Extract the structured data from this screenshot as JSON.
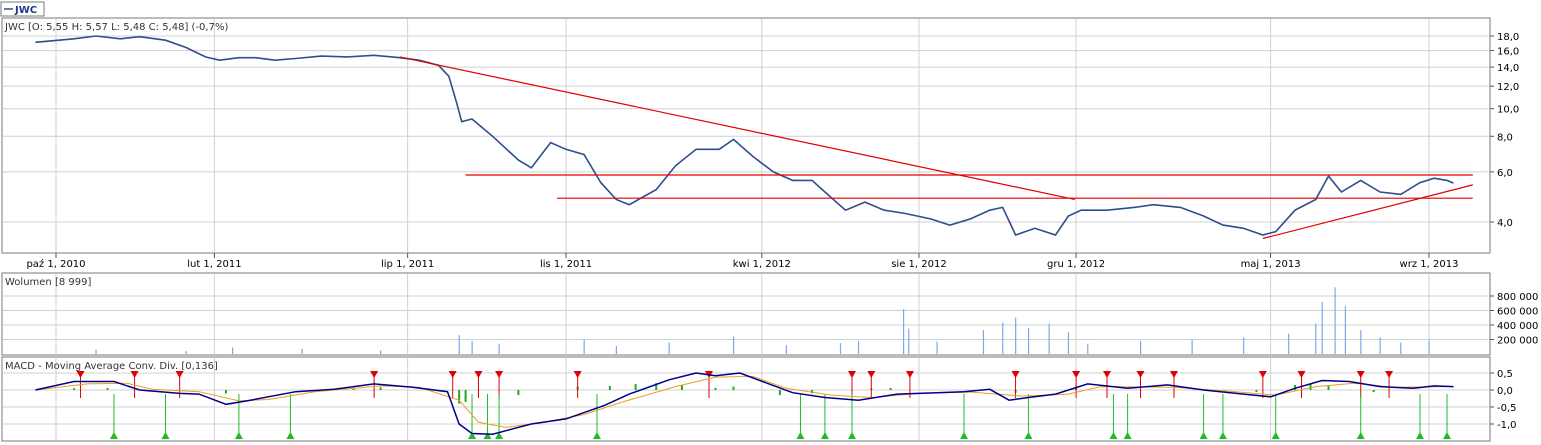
{
  "colors": {
    "price": "#2d4f8c",
    "trend": "#e00000",
    "volume": "#7aaae8",
    "macd": "#00008b",
    "signal": "#e8a020",
    "hist": "#22aa22",
    "down_marker": "#e00000",
    "up_marker": "#22bb22",
    "grid": "#d0d0d0",
    "border": "#7a7a7a"
  },
  "tab": {
    "symbol": "JWC"
  },
  "price_panel": {
    "header": "JWC [O: 5,55  H: 5,57  L: 5,48  C: 5,48] (-0,7%)",
    "y_ticks": [
      "18,0",
      "16,0",
      "14,0",
      "12,0",
      "10,0",
      "8,0",
      "6,0",
      "4,0"
    ],
    "x_ticks": [
      "paź 1, 2010",
      "lut 1, 2011",
      "lip 1, 2011",
      "lis 1, 2011",
      "kwi 1, 2012",
      "sie 1, 2012",
      "gru 1, 2012",
      "maj 1, 2013",
      "wrz 1, 2013"
    ]
  },
  "volume_panel": {
    "header": "Wolumen [8 999]",
    "y_ticks": [
      "800 000",
      "600 000",
      "400 000",
      "200 000"
    ]
  },
  "macd_panel": {
    "header": "MACD - Moving Average Conv. Div. [0,136]",
    "y_ticks": [
      "0,5",
      "0,0",
      "-0,5",
      "-1,0"
    ]
  },
  "chart_data": [
    {
      "type": "line",
      "series": [
        {
          "name": "JWC",
          "points": [
            [
              "2010-09-15",
              17.1
            ],
            [
              "2010-10-15",
              17.6
            ],
            [
              "2010-11-01",
              18.0
            ],
            [
              "2010-11-20",
              17.6
            ],
            [
              "2010-12-05",
              17.9
            ],
            [
              "2010-12-25",
              17.4
            ],
            [
              "2011-01-10",
              16.4
            ],
            [
              "2011-01-25",
              15.2
            ],
            [
              "2011-02-05",
              14.8
            ],
            [
              "2011-02-20",
              15.1
            ],
            [
              "2011-03-05",
              15.1
            ],
            [
              "2011-03-20",
              14.8
            ],
            [
              "2011-04-05",
              15.0
            ],
            [
              "2011-04-25",
              15.3
            ],
            [
              "2011-05-15",
              15.2
            ],
            [
              "2011-06-05",
              15.4
            ],
            [
              "2011-06-25",
              15.1
            ],
            [
              "2011-07-10",
              14.8
            ],
            [
              "2011-07-25",
              14.2
            ],
            [
              "2011-08-02",
              13.0
            ],
            [
              "2011-08-08",
              10.5
            ],
            [
              "2011-08-12",
              9.0
            ],
            [
              "2011-08-20",
              9.2
            ],
            [
              "2011-09-05",
              8.0
            ],
            [
              "2011-09-25",
              6.6
            ],
            [
              "2011-10-05",
              6.2
            ],
            [
              "2011-10-20",
              7.6
            ],
            [
              "2011-11-01",
              7.2
            ],
            [
              "2011-11-15",
              6.9
            ],
            [
              "2011-11-28",
              5.5
            ],
            [
              "2011-12-10",
              4.8
            ],
            [
              "2011-12-20",
              4.6
            ],
            [
              "2012-01-10",
              5.2
            ],
            [
              "2012-01-25",
              6.3
            ],
            [
              "2012-02-10",
              7.2
            ],
            [
              "2012-02-28",
              7.2
            ],
            [
              "2012-03-10",
              7.8
            ],
            [
              "2012-03-25",
              6.8
            ],
            [
              "2012-04-10",
              6.0
            ],
            [
              "2012-04-25",
              5.6
            ],
            [
              "2012-05-10",
              5.6
            ],
            [
              "2012-05-20",
              5.1
            ],
            [
              "2012-06-05",
              4.4
            ],
            [
              "2012-06-20",
              4.7
            ],
            [
              "2012-07-05",
              4.4
            ],
            [
              "2012-07-20",
              4.3
            ],
            [
              "2012-08-10",
              4.1
            ],
            [
              "2012-08-25",
              3.9
            ],
            [
              "2012-09-10",
              4.1
            ],
            [
              "2012-09-25",
              4.4
            ],
            [
              "2012-10-05",
              4.5
            ],
            [
              "2012-10-15",
              3.6
            ],
            [
              "2012-10-30",
              3.8
            ],
            [
              "2012-11-15",
              3.6
            ],
            [
              "2012-11-25",
              4.2
            ],
            [
              "2012-12-05",
              4.4
            ],
            [
              "2012-12-25",
              4.4
            ],
            [
              "2013-01-15",
              4.5
            ],
            [
              "2013-01-30",
              4.6
            ],
            [
              "2013-02-20",
              4.5
            ],
            [
              "2013-03-10",
              4.2
            ],
            [
              "2013-03-25",
              3.9
            ],
            [
              "2013-04-10",
              3.8
            ],
            [
              "2013-04-25",
              3.6
            ],
            [
              "2013-05-05",
              3.7
            ],
            [
              "2013-05-20",
              4.4
            ],
            [
              "2013-06-05",
              4.8
            ],
            [
              "2013-06-15",
              5.8
            ],
            [
              "2013-06-25",
              5.1
            ],
            [
              "2013-07-10",
              5.6
            ],
            [
              "2013-07-25",
              5.1
            ],
            [
              "2013-08-10",
              5.0
            ],
            [
              "2013-08-25",
              5.5
            ],
            [
              "2013-09-05",
              5.7
            ],
            [
              "2013-09-15",
              5.6
            ],
            [
              "2013-09-20",
              5.48
            ]
          ]
        }
      ],
      "trendlines": [
        {
          "from": [
            "2011-06-25",
            15.2
          ],
          "to": [
            "2012-11-30",
            4.8
          ]
        },
        {
          "from": [
            "2011-08-15",
            5.85
          ],
          "to": [
            "2013-10-05",
            5.85
          ]
        },
        {
          "from": [
            "2011-10-25",
            4.85
          ],
          "to": [
            "2013-10-05",
            4.85
          ]
        },
        {
          "from": [
            "2013-04-25",
            3.5
          ],
          "to": [
            "2013-10-05",
            5.4
          ]
        }
      ],
      "ylim": [
        3.0,
        19.5
      ],
      "y_scale": "log",
      "grid": true,
      "legend": "top-left"
    },
    {
      "type": "bar",
      "series": [
        {
          "name": "Wolumen",
          "points": [
            [
              "2010-11-01",
              60000
            ],
            [
              "2011-01-10",
              40000
            ],
            [
              "2011-02-15",
              90000
            ],
            [
              "2011-04-10",
              70000
            ],
            [
              "2011-06-10",
              50000
            ],
            [
              "2011-08-10",
              260000
            ],
            [
              "2011-08-20",
              180000
            ],
            [
              "2011-09-10",
              140000
            ],
            [
              "2011-11-15",
              200000
            ],
            [
              "2011-12-10",
              110000
            ],
            [
              "2012-01-20",
              160000
            ],
            [
              "2012-03-10",
              240000
            ],
            [
              "2012-04-20",
              120000
            ],
            [
              "2012-06-01",
              150000
            ],
            [
              "2012-06-15",
              180000
            ],
            [
              "2012-07-20",
              620000
            ],
            [
              "2012-07-24",
              350000
            ],
            [
              "2012-08-15",
              170000
            ],
            [
              "2012-09-20",
              330000
            ],
            [
              "2012-10-05",
              430000
            ],
            [
              "2012-10-15",
              500000
            ],
            [
              "2012-10-25",
              360000
            ],
            [
              "2012-11-10",
              420000
            ],
            [
              "2012-11-25",
              300000
            ],
            [
              "2012-12-10",
              140000
            ],
            [
              "2013-01-20",
              180000
            ],
            [
              "2013-03-01",
              200000
            ],
            [
              "2013-04-10",
              230000
            ],
            [
              "2013-05-15",
              280000
            ],
            [
              "2013-06-05",
              420000
            ],
            [
              "2013-06-10",
              720000
            ],
            [
              "2013-06-20",
              920000
            ],
            [
              "2013-06-28",
              660000
            ],
            [
              "2013-07-10",
              330000
            ],
            [
              "2013-07-25",
              230000
            ],
            [
              "2013-08-10",
              160000
            ],
            [
              "2013-09-01",
              190000
            ]
          ]
        }
      ],
      "ylim": [
        0,
        960000
      ]
    },
    {
      "type": "line",
      "series": [
        {
          "name": "MACD",
          "points": [
            [
              "2010-09-15",
              0.0
            ],
            [
              "2010-10-15",
              0.25
            ],
            [
              "2010-11-15",
              0.25
            ],
            [
              "2010-12-05",
              0.0
            ],
            [
              "2011-01-05",
              -0.1
            ],
            [
              "2011-01-20",
              -0.12
            ],
            [
              "2011-02-10",
              -0.42
            ],
            [
              "2011-03-01",
              -0.3
            ],
            [
              "2011-04-05",
              -0.05
            ],
            [
              "2011-05-05",
              0.02
            ],
            [
              "2011-06-05",
              0.18
            ],
            [
              "2011-07-05",
              0.08
            ],
            [
              "2011-08-01",
              -0.05
            ],
            [
              "2011-08-10",
              -1.0
            ],
            [
              "2011-08-20",
              -1.28
            ],
            [
              "2011-09-05",
              -1.3
            ],
            [
              "2011-10-05",
              -1.0
            ],
            [
              "2011-11-01",
              -0.85
            ],
            [
              "2011-12-01",
              -0.45
            ],
            [
              "2011-12-20",
              -0.12
            ],
            [
              "2012-01-20",
              0.3
            ],
            [
              "2012-02-10",
              0.5
            ],
            [
              "2012-02-25",
              0.42
            ],
            [
              "2012-03-15",
              0.5
            ],
            [
              "2012-04-05",
              0.2
            ],
            [
              "2012-04-25",
              -0.08
            ],
            [
              "2012-05-20",
              -0.22
            ],
            [
              "2012-06-15",
              -0.3
            ],
            [
              "2012-07-15",
              -0.12
            ],
            [
              "2012-08-15",
              -0.08
            ],
            [
              "2012-09-05",
              -0.05
            ],
            [
              "2012-09-25",
              0.02
            ],
            [
              "2012-10-10",
              -0.3
            ],
            [
              "2012-10-25",
              -0.22
            ],
            [
              "2012-11-15",
              -0.12
            ],
            [
              "2012-12-10",
              0.18
            ],
            [
              "2013-01-10",
              0.05
            ],
            [
              "2013-02-10",
              0.15
            ],
            [
              "2013-03-10",
              0.0
            ],
            [
              "2013-04-10",
              -0.12
            ],
            [
              "2013-05-01",
              -0.2
            ],
            [
              "2013-05-20",
              0.05
            ],
            [
              "2013-06-10",
              0.28
            ],
            [
              "2013-07-01",
              0.25
            ],
            [
              "2013-07-25",
              0.1
            ],
            [
              "2013-08-20",
              0.05
            ],
            [
              "2013-09-05",
              0.12
            ],
            [
              "2013-09-20",
              0.1
            ]
          ]
        },
        {
          "name": "Signal",
          "points": [
            [
              "2010-09-15",
              0.0
            ],
            [
              "2010-10-25",
              0.18
            ],
            [
              "2010-11-25",
              0.2
            ],
            [
              "2010-12-15",
              0.02
            ],
            [
              "2011-01-20",
              -0.05
            ],
            [
              "2011-02-20",
              -0.32
            ],
            [
              "2011-03-15",
              -0.28
            ],
            [
              "2011-04-20",
              -0.05
            ],
            [
              "2011-06-10",
              0.12
            ],
            [
              "2011-07-10",
              0.08
            ],
            [
              "2011-08-10",
              -0.3
            ],
            [
              "2011-08-25",
              -0.95
            ],
            [
              "2011-09-15",
              -1.1
            ],
            [
              "2011-10-15",
              -0.95
            ],
            [
              "2011-11-15",
              -0.72
            ],
            [
              "2011-12-15",
              -0.35
            ],
            [
              "2012-01-25",
              0.1
            ],
            [
              "2012-02-25",
              0.38
            ],
            [
              "2012-03-25",
              0.4
            ],
            [
              "2012-04-20",
              0.05
            ],
            [
              "2012-05-25",
              -0.15
            ],
            [
              "2012-06-25",
              -0.22
            ],
            [
              "2012-08-01",
              -0.1
            ],
            [
              "2012-09-10",
              -0.06
            ],
            [
              "2012-10-20",
              -0.18
            ],
            [
              "2012-11-25",
              -0.12
            ],
            [
              "2012-12-20",
              0.1
            ],
            [
              "2013-02-15",
              0.08
            ],
            [
              "2013-03-25",
              -0.02
            ],
            [
              "2013-05-05",
              -0.15
            ],
            [
              "2013-06-05",
              0.1
            ],
            [
              "2013-07-05",
              0.2
            ],
            [
              "2013-08-05",
              0.08
            ],
            [
              "2013-09-20",
              0.1
            ]
          ]
        }
      ],
      "histogram": [
        [
          "2010-10-15",
          0.05
        ],
        [
          "2010-11-10",
          0.06
        ],
        [
          "2011-02-10",
          -0.1
        ],
        [
          "2011-05-20",
          0.06
        ],
        [
          "2011-06-10",
          0.08
        ],
        [
          "2011-08-10",
          -0.4
        ],
        [
          "2011-08-15",
          -0.35
        ],
        [
          "2011-09-25",
          -0.15
        ],
        [
          "2011-11-10",
          0.1
        ],
        [
          "2011-12-05",
          0.12
        ],
        [
          "2011-12-25",
          0.18
        ],
        [
          "2012-01-10",
          0.2
        ],
        [
          "2012-01-30",
          0.15
        ],
        [
          "2012-02-25",
          0.06
        ],
        [
          "2012-03-10",
          0.1
        ],
        [
          "2012-04-15",
          -0.15
        ],
        [
          "2012-05-10",
          -0.1
        ],
        [
          "2012-06-25",
          0.05
        ],
        [
          "2012-07-10",
          0.06
        ],
        [
          "2012-10-15",
          -0.08
        ],
        [
          "2012-12-01",
          0.08
        ],
        [
          "2013-04-20",
          -0.06
        ],
        [
          "2013-05-20",
          0.15
        ],
        [
          "2013-06-01",
          0.18
        ],
        [
          "2013-06-15",
          0.12
        ],
        [
          "2013-07-20",
          -0.06
        ]
      ],
      "sell_signals": [
        "2010-10-20",
        "2010-12-01",
        "2011-01-05",
        "2011-06-05",
        "2011-08-05",
        "2011-08-25",
        "2011-09-10",
        "2011-11-10",
        "2012-02-20",
        "2012-06-10",
        "2012-06-25",
        "2012-07-25",
        "2012-10-15",
        "2012-12-01",
        "2012-12-25",
        "2013-01-20",
        "2013-02-15",
        "2013-04-25",
        "2013-05-25",
        "2013-07-10",
        "2013-08-01"
      ],
      "buy_signals": [
        "2010-11-15",
        "2010-12-25",
        "2011-02-20",
        "2011-04-01",
        "2011-08-20",
        "2011-09-01",
        "2011-09-10",
        "2011-11-25",
        "2012-05-01",
        "2012-05-20",
        "2012-06-10",
        "2012-09-05",
        "2012-10-25",
        "2012-12-30",
        "2013-01-10",
        "2013-03-10",
        "2013-03-25",
        "2013-05-05",
        "2013-07-10",
        "2013-08-25",
        "2013-09-15"
      ],
      "ylim": [
        -1.35,
        0.72
      ]
    }
  ]
}
